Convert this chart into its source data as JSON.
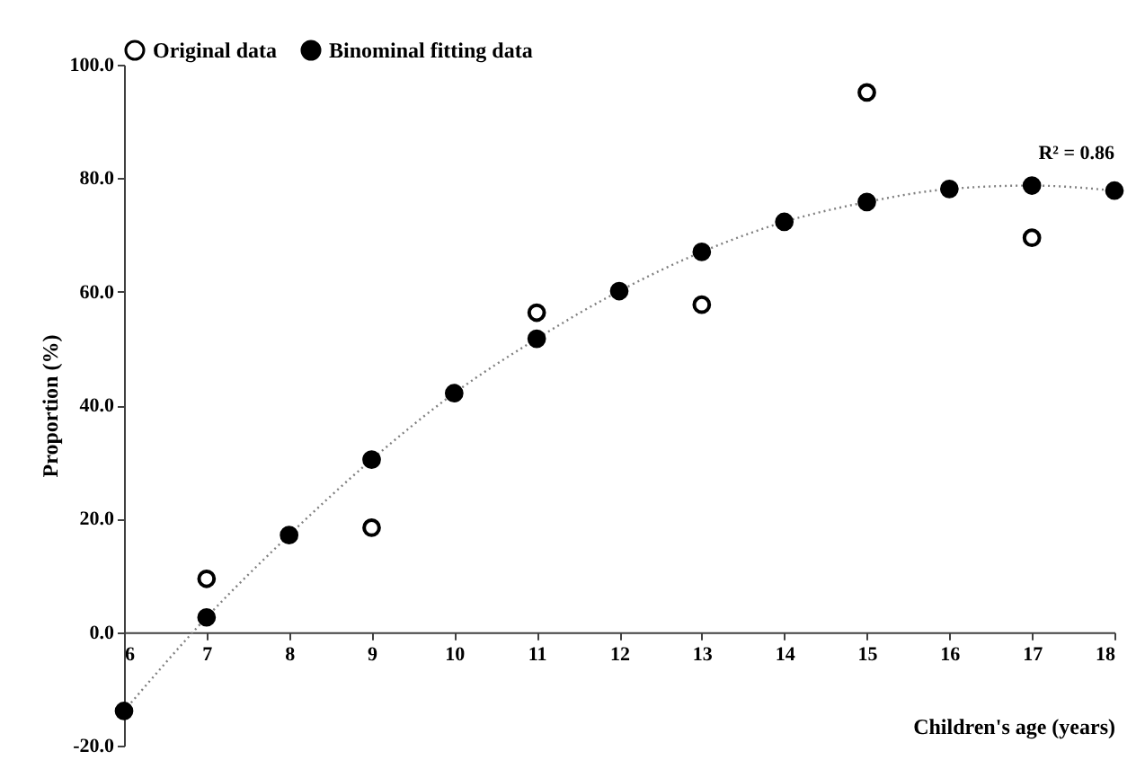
{
  "chart_data": {
    "type": "scatter",
    "xlabel": "Children's age (years)",
    "ylabel": "Proportion (%)",
    "xlim": [
      6,
      18
    ],
    "xticks": [
      6,
      7,
      8,
      9,
      10,
      11,
      12,
      13,
      14,
      15,
      16,
      17,
      18
    ],
    "ylim": [
      -20,
      100
    ],
    "yticks": [
      {
        "value": -20,
        "label": "-20.0"
      },
      {
        "value": 0,
        "label": "0.0"
      },
      {
        "value": 20,
        "label": "20.0"
      },
      {
        "value": 40,
        "label": "40.0"
      },
      {
        "value": 60,
        "label": "60.0"
      },
      {
        "value": 80,
        "label": "80.0"
      },
      {
        "value": 100,
        "label": "100.0"
      }
    ],
    "grid": false,
    "legend": "top",
    "marker": "circle",
    "annotations": [
      "R² = 0.86"
    ],
    "series": [
      {
        "name": "Original data",
        "color": "#000000",
        "x": [
          7,
          9,
          11,
          13,
          15,
          17
        ],
        "values": [
          9.4,
          18.4,
          56.3,
          57.7,
          95.1,
          69.5
        ]
      },
      {
        "name": "Binominal fitting data",
        "type": "line",
        "line_style": "dotted",
        "color": "#000000",
        "x": [
          6,
          7,
          8,
          9,
          10,
          11,
          12,
          13,
          14,
          15,
          16,
          17,
          18
        ],
        "values": [
          -13.9,
          2.6,
          17.1,
          30.4,
          42.1,
          51.7,
          60.1,
          67.0,
          72.3,
          75.8,
          78.1,
          78.7,
          77.8
        ]
      }
    ]
  }
}
